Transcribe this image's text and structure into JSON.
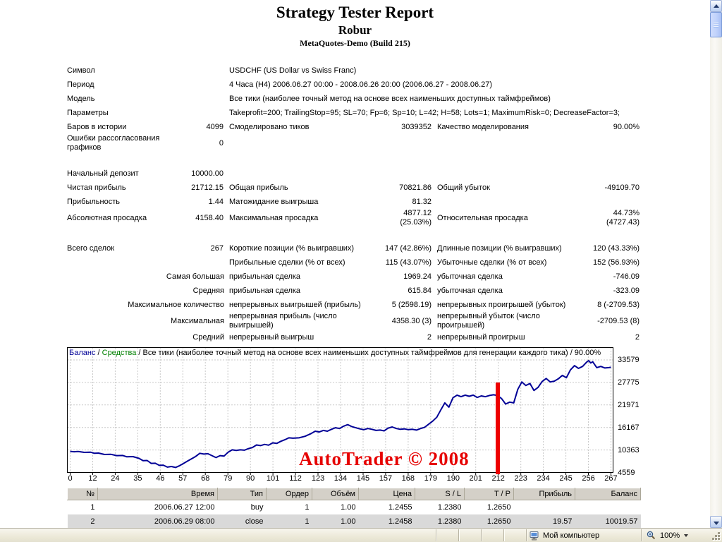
{
  "report": {
    "title": "Strategy Tester Report",
    "expert": "Robur",
    "server": "MetaQuotes-Demo (Build 215)",
    "rows": [
      {
        "l1": "Символ",
        "wide": "USDCHF (US Dollar vs Swiss Franc)"
      },
      {
        "l1": "Период",
        "wide": "4 Часа (H4) 2006.06.27 00:00 - 2008.06.26 20:00 (2006.06.27 - 2008.06.27)"
      },
      {
        "l1": "Модель",
        "wide": "Все тики (наиболее точный метод на основе всех наименьших доступных таймфреймов)"
      },
      {
        "l1": "Параметры",
        "wide": "Takeprofit=200; TrailingStop=95; SL=70; Fp=6; Sp=10; L=42; H=58; Lots=1; MaximumRisk=0; DecreaseFactor=3;"
      },
      {
        "l1": "Баров в истории",
        "r1": "4099",
        "l2": "Смоделировано тиков",
        "r2": "3039352",
        "l3": "Качество моделирования",
        "r3": "90.00%"
      },
      {
        "l1": "Ошибки рассогласования\nграфиков",
        "r1": "0"
      },
      {
        "spacer": true
      },
      {
        "l1": "Начальный депозит",
        "r1": "10000.00"
      },
      {
        "l1": "Чистая прибыль",
        "r1": "21712.15",
        "l2": "Общая прибыль",
        "r2": "70821.86",
        "l3": "Общий убыток",
        "r3": "-49109.70"
      },
      {
        "l1": "Прибыльность",
        "r1": "1.44",
        "l2": "Матожидание выигрыша",
        "r2": "81.32"
      },
      {
        "l1": "Абсолютная просадка",
        "r1": "4158.40",
        "l2": "Максимальная просадка",
        "r2": "4877.12\n(25.03%)",
        "l3": "Относительная просадка",
        "r3": "44.73%\n(4727.43)"
      },
      {
        "spacer": true
      },
      {
        "l1": "Всего сделок",
        "r1": "267",
        "l2": "Короткие позиции (% выигравших)",
        "r2": "147 (42.86%)",
        "l3": "Длинные позиции (% выигравших)",
        "r3": "120 (43.33%)"
      },
      {
        "l2": "Прибыльные сделки (% от всех)",
        "r2": "115 (43.07%)",
        "l3": "Убыточные сделки (% от всех)",
        "r3": "152 (56.93%)"
      },
      {
        "mod": "Самая большая",
        "l2": "прибыльная сделка",
        "r2": "1969.24",
        "l3": "убыточная сделка",
        "r3": "-746.09"
      },
      {
        "mod": "Средняя",
        "l2": "прибыльная сделка",
        "r2": "615.84",
        "l3": "убыточная сделка",
        "r3": "-323.09"
      },
      {
        "mod": "Максимальное количество",
        "l2": "непрерывных выигрышей (прибыль)",
        "r2": "5 (2598.19)",
        "l3": "непрерывных проигрышей (убыток)",
        "r3": "8 (-2709.53)"
      },
      {
        "mod": "Максимальная",
        "l2": "непрерывная прибыль (число\nвыигрышей)",
        "r2": "4358.30 (3)",
        "l3": "непрерывный убыток (число\nпроигрышей)",
        "r3": "-2709.53 (8)"
      },
      {
        "mod": "Средний",
        "l2": "непрерывный выигрыш",
        "r2": "2",
        "l3": "непрерывный проигрыш",
        "r3": "2"
      }
    ]
  },
  "chart_data": {
    "type": "line",
    "legend": {
      "balance": "Баланс",
      "equity": "Средства",
      "sep": " / ",
      "subtitle": "Все тики (наиболее точный метод на основе всех наименьших доступных таймфреймов для генерации каждого тика) / 90.00%"
    },
    "watermark": "AutoTrader © 2008",
    "x_ticks": [
      0,
      12,
      24,
      35,
      46,
      57,
      68,
      79,
      90,
      101,
      112,
      123,
      134,
      145,
      157,
      168,
      179,
      190,
      201,
      212,
      223,
      234,
      245,
      256,
      267
    ],
    "y_ticks": [
      33579,
      27775,
      21971,
      16167,
      10363,
      4559
    ],
    "xlim": [
      0,
      267
    ],
    "ylim": [
      4559,
      33579
    ],
    "grid": true,
    "red_marker_x": 211,
    "colors": {
      "balance": "#000096",
      "equity": "#008000",
      "grid": "#c9c9c9",
      "marker": "#ee0000",
      "watermark": "#e60000"
    },
    "series": [
      {
        "name": "Баланс",
        "color": "#000096",
        "points": [
          [
            0,
            10000
          ],
          [
            2,
            9900
          ],
          [
            4,
            9960
          ],
          [
            7,
            9750
          ],
          [
            10,
            9800
          ],
          [
            12,
            9500
          ],
          [
            14,
            9560
          ],
          [
            17,
            9200
          ],
          [
            20,
            9250
          ],
          [
            23,
            8900
          ],
          [
            26,
            8950
          ],
          [
            28,
            8600
          ],
          [
            31,
            8650
          ],
          [
            34,
            8200
          ],
          [
            36,
            7600
          ],
          [
            38,
            7650
          ],
          [
            40,
            6900
          ],
          [
            42,
            6950
          ],
          [
            44,
            6400
          ],
          [
            46,
            6450
          ],
          [
            48,
            5950
          ],
          [
            50,
            6100
          ],
          [
            52,
            5842
          ],
          [
            54,
            6300
          ],
          [
            56,
            6900
          ],
          [
            58,
            7500
          ],
          [
            60,
            8100
          ],
          [
            62,
            8700
          ],
          [
            64,
            9500
          ],
          [
            66,
            9300
          ],
          [
            68,
            9400
          ],
          [
            70,
            8900
          ],
          [
            72,
            8400
          ],
          [
            74,
            8900
          ],
          [
            76,
            8800
          ],
          [
            78,
            9800
          ],
          [
            80,
            10400
          ],
          [
            82,
            10250
          ],
          [
            84,
            10400
          ],
          [
            86,
            10300
          ],
          [
            88,
            10700
          ],
          [
            90,
            11000
          ],
          [
            92,
            11650
          ],
          [
            94,
            11500
          ],
          [
            96,
            11800
          ],
          [
            98,
            11600
          ],
          [
            100,
            12200
          ],
          [
            102,
            12050
          ],
          [
            104,
            12600
          ],
          [
            106,
            13000
          ],
          [
            108,
            13500
          ],
          [
            110,
            13400
          ],
          [
            113,
            13500
          ],
          [
            116,
            13900
          ],
          [
            119,
            14600
          ],
          [
            121,
            15200
          ],
          [
            123,
            15000
          ],
          [
            125,
            15400
          ],
          [
            127,
            15200
          ],
          [
            129,
            15700
          ],
          [
            131,
            16100
          ],
          [
            133,
            15900
          ],
          [
            135,
            16500
          ],
          [
            137,
            16900
          ],
          [
            139,
            16400
          ],
          [
            141,
            16100
          ],
          [
            143,
            15800
          ],
          [
            145,
            15600
          ],
          [
            147,
            15900
          ],
          [
            149,
            15700
          ],
          [
            151,
            15400
          ],
          [
            153,
            15500
          ],
          [
            155,
            15300
          ],
          [
            157,
            16000
          ],
          [
            159,
            16300
          ],
          [
            161,
            15900
          ],
          [
            163,
            15700
          ],
          [
            165,
            15800
          ],
          [
            167,
            15600
          ],
          [
            169,
            15700
          ],
          [
            171,
            15500
          ],
          [
            173,
            15900
          ],
          [
            175,
            16200
          ],
          [
            177,
            17000
          ],
          [
            179,
            17800
          ],
          [
            181,
            18800
          ],
          [
            183,
            20700
          ],
          [
            185,
            22500
          ],
          [
            187,
            21400
          ],
          [
            189,
            23800
          ],
          [
            191,
            24500
          ],
          [
            193,
            24100
          ],
          [
            195,
            24500
          ],
          [
            197,
            24200
          ],
          [
            199,
            24500
          ],
          [
            201,
            23900
          ],
          [
            203,
            24300
          ],
          [
            205,
            24100
          ],
          [
            207,
            24400
          ],
          [
            209,
            24600
          ],
          [
            211,
            24400
          ],
          [
            213,
            23600
          ],
          [
            215,
            22200
          ],
          [
            217,
            22700
          ],
          [
            219,
            22500
          ],
          [
            221,
            26000
          ],
          [
            223,
            27900
          ],
          [
            225,
            27000
          ],
          [
            227,
            27500
          ],
          [
            229,
            25700
          ],
          [
            231,
            26500
          ],
          [
            233,
            28000
          ],
          [
            235,
            28800
          ],
          [
            237,
            27900
          ],
          [
            239,
            28100
          ],
          [
            241,
            28700
          ],
          [
            243,
            29600
          ],
          [
            245,
            29000
          ],
          [
            247,
            31000
          ],
          [
            249,
            32100
          ],
          [
            251,
            31400
          ],
          [
            253,
            31900
          ],
          [
            255,
            33000
          ],
          [
            256,
            33400
          ],
          [
            257,
            32800
          ],
          [
            258,
            33100
          ],
          [
            260,
            31600
          ],
          [
            262,
            31900
          ],
          [
            264,
            31500
          ],
          [
            266,
            31600
          ],
          [
            267,
            31712
          ]
        ]
      }
    ]
  },
  "trades": {
    "headers": [
      "№",
      "Время",
      "Тип",
      "Ордер",
      "Объём",
      "Цена",
      "S / L",
      "T / P",
      "Прибыль",
      "Баланс"
    ],
    "rows": [
      [
        "1",
        "2006.06.27 12:00",
        "buy",
        "1",
        "1.00",
        "1.2455",
        "1.2380",
        "1.2650",
        "",
        ""
      ],
      [
        "2",
        "2006.06.29 08:00",
        "close",
        "1",
        "1.00",
        "1.2458",
        "1.2380",
        "1.2650",
        "19.57",
        "10019.57"
      ]
    ]
  },
  "statusbar": {
    "zone": "Мой компьютер",
    "zoom": "100%"
  }
}
